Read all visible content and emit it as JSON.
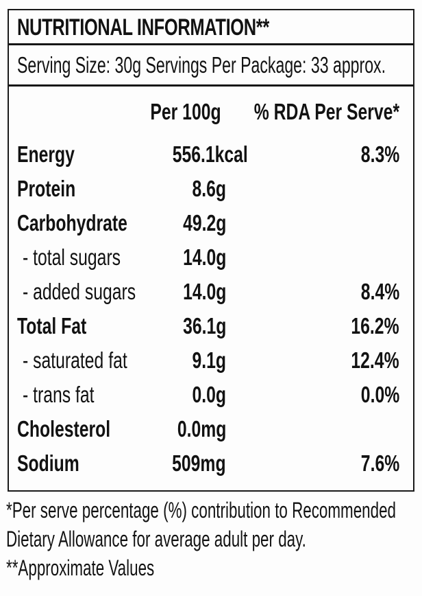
{
  "label": {
    "title": "NUTRITIONAL INFORMATION**",
    "serving_line": "Serving Size: 30g  Servings Per Package: 33 approx.",
    "columns": {
      "per_100g": "Per 100g",
      "rda": "% RDA Per Serve*"
    },
    "rows": [
      {
        "name": "Energy",
        "per_100g": "556.1kcal",
        "rda": "8.3%"
      },
      {
        "name": "Protein",
        "per_100g": "8.6g",
        "rda": ""
      },
      {
        "name": "Carbohydrate",
        "per_100g": "49.2g",
        "rda": ""
      },
      {
        "name": "- total sugars",
        "per_100g": "14.0g",
        "rda": ""
      },
      {
        "name": "- added sugars",
        "per_100g": "14.0g",
        "rda": "8.4%"
      },
      {
        "name": "Total Fat",
        "per_100g": "36.1g",
        "rda": "16.2%"
      },
      {
        "name": "- saturated fat",
        "per_100g": "9.1g",
        "rda": "12.4%"
      },
      {
        "name": "- trans fat",
        "per_100g": "0.0g",
        "rda": "0.0%"
      },
      {
        "name": "Cholesterol",
        "per_100g": "0.0mg",
        "rda": ""
      },
      {
        "name": "Sodium",
        "per_100g": "509mg",
        "rda": "7.6%"
      }
    ],
    "footnote_lines": [
      "*Per serve percentage (%) contribution to Recommended",
      "Dietary Allowance for average adult per day.",
      "**Approximate Values"
    ],
    "colors": {
      "text": "#121212",
      "border": "#1a1a1a",
      "background": "#fdfdfd"
    }
  }
}
